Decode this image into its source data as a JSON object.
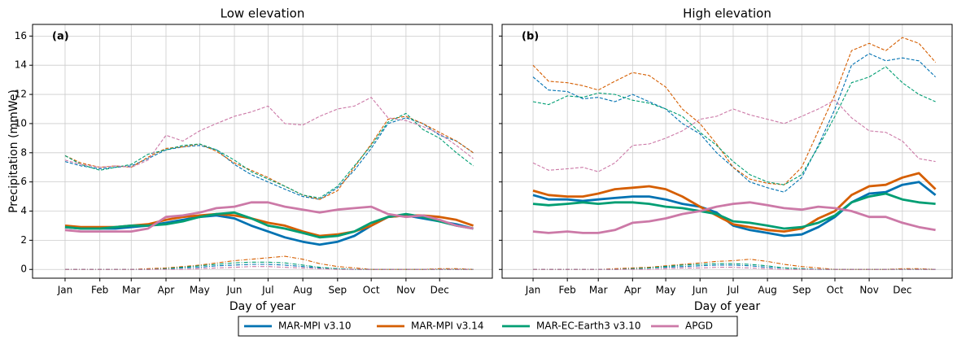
{
  "chart_data": [
    {
      "type": "line",
      "title": "Low elevation",
      "label": "(a)",
      "xlabel": "Day of year",
      "ylabel": "Precipitation (mmWe)",
      "x": [
        1,
        15,
        32,
        46,
        60,
        75,
        91,
        106,
        121,
        136,
        152,
        167,
        182,
        197,
        213,
        228,
        244,
        259,
        274,
        289,
        305,
        320,
        335,
        350,
        365
      ],
      "xlim": [
        -28,
        382
      ],
      "xticks": [
        {
          "value": 1,
          "label": "Jan"
        },
        {
          "value": 32,
          "label": "Feb"
        },
        {
          "value": 60,
          "label": "Mar"
        },
        {
          "value": 91,
          "label": "Apr"
        },
        {
          "value": 121,
          "label": "May"
        },
        {
          "value": 152,
          "label": "Jun"
        },
        {
          "value": 182,
          "label": "Jul"
        },
        {
          "value": 213,
          "label": "Aug"
        },
        {
          "value": 244,
          "label": "Sep"
        },
        {
          "value": 274,
          "label": "Oct"
        },
        {
          "value": 305,
          "label": "Nov"
        },
        {
          "value": 335,
          "label": "Dec"
        }
      ],
      "ylim": [
        -0.6,
        16.8
      ],
      "yticks": [
        0,
        2,
        4,
        6,
        8,
        10,
        12,
        14,
        16
      ],
      "ytick_labels": true,
      "grid": true,
      "series": [
        {
          "name": "MAR-MPI v3.10",
          "color": "#0072b2",
          "values": [
            2.9,
            2.8,
            2.8,
            2.8,
            2.9,
            3.0,
            3.2,
            3.4,
            3.6,
            3.7,
            3.5,
            3.0,
            2.6,
            2.2,
            1.9,
            1.7,
            1.9,
            2.3,
            3.0,
            3.6,
            3.7,
            3.5,
            3.3,
            3.1,
            2.8
          ],
          "dashed_values": [
            7.4,
            7.1,
            6.9,
            7.0,
            7.1,
            7.6,
            8.2,
            8.4,
            8.5,
            8.2,
            7.2,
            6.5,
            6.0,
            5.5,
            5.0,
            4.8,
            5.6,
            6.8,
            8.3,
            10.0,
            10.4,
            10.0,
            9.2,
            8.8,
            8.0
          ],
          "dashdot_values": [
            0,
            0,
            0,
            0,
            0,
            0,
            0.05,
            0.1,
            0.15,
            0.25,
            0.3,
            0.35,
            0.35,
            0.3,
            0.2,
            0.1,
            0.05,
            0,
            0,
            0,
            0,
            0,
            0,
            0,
            0
          ]
        },
        {
          "name": "MAR-MPI v3.14",
          "color": "#d55e00",
          "values": [
            3.0,
            2.9,
            2.9,
            2.9,
            3.0,
            3.1,
            3.4,
            3.6,
            3.7,
            3.8,
            3.7,
            3.5,
            3.2,
            3.0,
            2.6,
            2.3,
            2.4,
            2.6,
            3.0,
            3.6,
            3.7,
            3.7,
            3.6,
            3.4,
            3.0
          ],
          "dashed_values": [
            7.8,
            7.3,
            7.0,
            7.1,
            7.0,
            7.7,
            8.3,
            8.4,
            8.6,
            8.1,
            7.3,
            6.8,
            6.3,
            5.7,
            5.1,
            4.8,
            5.4,
            7.0,
            8.6,
            10.3,
            10.5,
            10.0,
            9.4,
            8.8,
            8.0
          ],
          "dashdot_values": [
            0,
            0,
            0,
            0,
            0,
            0.05,
            0.1,
            0.2,
            0.3,
            0.45,
            0.6,
            0.7,
            0.8,
            0.9,
            0.7,
            0.4,
            0.2,
            0.1,
            0,
            0,
            0,
            0,
            0.05,
            0.05,
            0
          ]
        },
        {
          "name": "MAR-EC-Earth3 v3.10",
          "color": "#009e73",
          "values": [
            2.9,
            2.8,
            2.8,
            2.9,
            3.0,
            3.0,
            3.1,
            3.3,
            3.6,
            3.8,
            3.9,
            3.5,
            3.0,
            2.8,
            2.5,
            2.2,
            2.3,
            2.6,
            3.2,
            3.6,
            3.8,
            3.6,
            3.3,
            3.0,
            2.8
          ],
          "dashed_values": [
            7.8,
            7.2,
            6.8,
            7.0,
            7.2,
            7.9,
            8.2,
            8.5,
            8.6,
            8.2,
            7.5,
            6.7,
            6.2,
            5.7,
            5.1,
            4.9,
            5.7,
            7.1,
            8.5,
            10.1,
            10.7,
            9.6,
            9.0,
            8.0,
            7.1
          ],
          "dashdot_values": [
            0,
            0,
            0,
            0,
            0,
            0,
            0.05,
            0.15,
            0.25,
            0.35,
            0.45,
            0.5,
            0.5,
            0.45,
            0.3,
            0.15,
            0.05,
            0,
            0,
            0,
            0,
            0,
            0,
            0,
            0
          ]
        },
        {
          "name": "APGD",
          "color": "#cc79a7",
          "values": [
            2.7,
            2.6,
            2.6,
            2.6,
            2.6,
            2.8,
            3.6,
            3.7,
            3.9,
            4.2,
            4.3,
            4.6,
            4.6,
            4.3,
            4.1,
            3.9,
            4.1,
            4.2,
            4.3,
            3.8,
            3.6,
            3.7,
            3.4,
            3.0,
            2.8
          ],
          "dashed_values": [
            7.5,
            7.2,
            7.0,
            7.1,
            7.0,
            7.5,
            9.2,
            8.8,
            9.5,
            10.0,
            10.5,
            10.8,
            11.2,
            10.0,
            9.9,
            10.5,
            11.0,
            11.2,
            11.8,
            10.4,
            10.2,
            9.8,
            9.3,
            8.5,
            7.6
          ],
          "dashdot_values": [
            0,
            0,
            0,
            0,
            0,
            0,
            0,
            0,
            0.05,
            0.1,
            0.15,
            0.2,
            0.2,
            0.15,
            0.1,
            0.05,
            0,
            0,
            0,
            0,
            0,
            0,
            0,
            0,
            0
          ]
        }
      ]
    },
    {
      "type": "line",
      "title": "High elevation",
      "label": "(b)",
      "xlabel": "Day of year",
      "x": [
        1,
        15,
        32,
        46,
        60,
        75,
        91,
        106,
        121,
        136,
        152,
        167,
        182,
        197,
        213,
        228,
        244,
        259,
        274,
        289,
        305,
        320,
        335,
        350,
        365
      ],
      "xlim": [
        -27,
        380
      ],
      "xticks": [
        {
          "value": 1,
          "label": "Jan"
        },
        {
          "value": 32,
          "label": "Feb"
        },
        {
          "value": 60,
          "label": "Mar"
        },
        {
          "value": 91,
          "label": "Apr"
        },
        {
          "value": 121,
          "label": "May"
        },
        {
          "value": 152,
          "label": "Jun"
        },
        {
          "value": 182,
          "label": "Jul"
        },
        {
          "value": 213,
          "label": "Aug"
        },
        {
          "value": 244,
          "label": "Sep"
        },
        {
          "value": 274,
          "label": "Oct"
        },
        {
          "value": 305,
          "label": "Nov"
        },
        {
          "value": 335,
          "label": "Dec"
        }
      ],
      "ylim": [
        -0.6,
        16.8
      ],
      "yticks": [
        0,
        2,
        4,
        6,
        8,
        10,
        12,
        14,
        16
      ],
      "ytick_labels": false,
      "grid": true,
      "series": [
        {
          "color": "#0072b2",
          "values": [
            5.1,
            4.8,
            4.8,
            4.7,
            4.8,
            4.9,
            5.0,
            5.0,
            4.8,
            4.5,
            4.3,
            3.9,
            3.0,
            2.7,
            2.5,
            2.3,
            2.4,
            2.9,
            3.6,
            4.6,
            5.2,
            5.3,
            5.8,
            6.0,
            5.1
          ],
          "dashed_values": [
            13.2,
            12.3,
            12.2,
            11.7,
            11.8,
            11.5,
            12.0,
            11.5,
            11.0,
            10.0,
            9.3,
            8.0,
            7.0,
            6.0,
            5.6,
            5.3,
            6.3,
            8.5,
            11.0,
            14.0,
            14.8,
            14.3,
            14.5,
            14.3,
            13.2
          ],
          "dashdot_values": [
            0,
            0,
            0,
            0,
            0,
            0,
            0.05,
            0.1,
            0.15,
            0.2,
            0.25,
            0.3,
            0.3,
            0.25,
            0.15,
            0.1,
            0.05,
            0,
            0,
            0,
            0,
            0,
            0,
            0,
            0
          ]
        },
        {
          "color": "#d55e00",
          "values": [
            5.4,
            5.1,
            5.0,
            5.0,
            5.2,
            5.5,
            5.6,
            5.7,
            5.5,
            5.0,
            4.3,
            3.7,
            3.1,
            2.9,
            2.7,
            2.6,
            2.8,
            3.5,
            4.0,
            5.1,
            5.7,
            5.8,
            6.3,
            6.6,
            5.5
          ],
          "dashed_values": [
            14.0,
            12.9,
            12.8,
            12.6,
            12.3,
            12.9,
            13.5,
            13.3,
            12.5,
            11.0,
            10.0,
            8.6,
            7.0,
            6.2,
            5.9,
            5.8,
            7.0,
            9.5,
            12.0,
            15.0,
            15.5,
            15.0,
            15.9,
            15.5,
            14.2
          ],
          "dashdot_values": [
            0,
            0,
            0,
            0,
            0,
            0.05,
            0.1,
            0.15,
            0.25,
            0.35,
            0.45,
            0.55,
            0.6,
            0.7,
            0.55,
            0.35,
            0.2,
            0.1,
            0,
            0,
            0,
            0,
            0.05,
            0.05,
            0
          ]
        },
        {
          "color": "#009e73",
          "values": [
            4.5,
            4.4,
            4.5,
            4.6,
            4.5,
            4.6,
            4.6,
            4.5,
            4.3,
            4.2,
            4.0,
            3.8,
            3.3,
            3.2,
            3.0,
            2.8,
            2.9,
            3.2,
            3.7,
            4.6,
            5.0,
            5.2,
            4.8,
            4.6,
            4.5
          ],
          "dashed_values": [
            11.5,
            11.3,
            11.9,
            11.8,
            12.1,
            12.0,
            11.6,
            11.4,
            11.0,
            10.5,
            9.4,
            8.5,
            7.4,
            6.5,
            6.0,
            5.8,
            6.5,
            8.4,
            10.5,
            12.8,
            13.2,
            13.9,
            12.8,
            12.0,
            11.5
          ],
          "dashdot_values": [
            0,
            0,
            0,
            0,
            0,
            0,
            0.05,
            0.1,
            0.2,
            0.3,
            0.35,
            0.4,
            0.4,
            0.35,
            0.25,
            0.1,
            0.05,
            0,
            0,
            0,
            0,
            0,
            0,
            0,
            0
          ]
        },
        {
          "color": "#cc79a7",
          "values": [
            2.6,
            2.5,
            2.6,
            2.5,
            2.5,
            2.7,
            3.2,
            3.3,
            3.5,
            3.8,
            4.0,
            4.3,
            4.5,
            4.6,
            4.4,
            4.2,
            4.1,
            4.3,
            4.2,
            4.0,
            3.6,
            3.6,
            3.2,
            2.9,
            2.7
          ],
          "dashed_values": [
            7.3,
            6.8,
            6.9,
            7.0,
            6.7,
            7.3,
            8.5,
            8.6,
            9.0,
            9.5,
            10.3,
            10.5,
            11.0,
            10.6,
            10.3,
            10.0,
            10.5,
            11.0,
            11.6,
            10.4,
            9.5,
            9.4,
            8.8,
            7.6,
            7.4
          ],
          "dashdot_values": [
            0,
            0,
            0,
            0,
            0,
            0,
            0,
            0,
            0.05,
            0.1,
            0.1,
            0.15,
            0.15,
            0.1,
            0.05,
            0,
            0,
            0,
            0,
            0,
            0,
            0,
            0,
            0,
            0
          ]
        }
      ]
    }
  ]
}
